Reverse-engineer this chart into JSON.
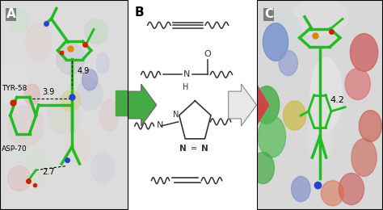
{
  "panel_A_label": "A",
  "panel_B_label": "B",
  "panel_C_label": "C",
  "background_color": "#ffffff",
  "label_fontsize": 11,
  "label_fontweight": "bold",
  "tyr58_label": "TYR-58",
  "asp70_label": "ASP-70",
  "dist1": "4.9",
  "dist2": "3.9",
  "dist3": "2.7",
  "dist_C": "4.2",
  "green": "#22bb22",
  "orange": "#dd8800",
  "red_atom": "#cc2200",
  "blue_atom": "#2244cc",
  "dark_line": "#333333",
  "panelA_surf_colors": [
    "#e0e0e0",
    "#d4c8c8",
    "#c8d4c8",
    "#c8c8d4",
    "#f0f0f0",
    "#e8d0d0",
    "#d0e8d0",
    "#d0d0e8",
    "#c0c0c0",
    "#e8e0e0"
  ],
  "panelC_surf_colors": [
    "#44bb44",
    "#bb4444",
    "#4444bb",
    "#f0f0f0",
    "#e8e8e8",
    "#88cc88",
    "#cc8888",
    "#8888cc",
    "#44aa44",
    "#cc4444"
  ],
  "arrow_AB_color": "#44aa44",
  "arrow_BC_color": "#e8e8e8",
  "arrow_BC_edge": "#888888"
}
